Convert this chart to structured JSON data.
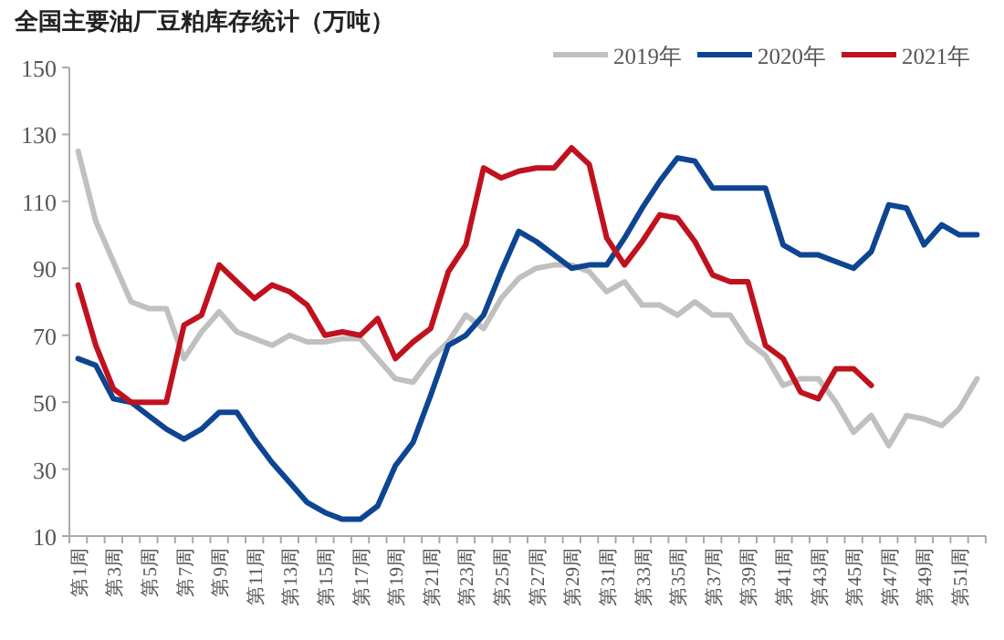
{
  "chart_data": {
    "type": "line",
    "title": "全国主要油厂豆粕库存统计（万吨）",
    "categories": [
      "第1周",
      null,
      "第3周",
      null,
      "第5周",
      null,
      "第7周",
      null,
      "第9周",
      null,
      "第11周",
      null,
      "第13周",
      null,
      "第15周",
      null,
      "第17周",
      null,
      "第19周",
      null,
      "第21周",
      null,
      "第23周",
      null,
      "第25周",
      null,
      "第27周",
      null,
      "第29周",
      null,
      "第31周",
      null,
      "第33周",
      null,
      "第35周",
      null,
      "第37周",
      null,
      "第39周",
      null,
      "第41周",
      null,
      "第43周",
      null,
      "第45周",
      null,
      "第47周",
      null,
      "第49周",
      null,
      "第51周",
      null
    ],
    "series": [
      {
        "name": "2019年",
        "color": "#c0c0c0",
        "values": [
          125,
          104,
          92,
          80,
          78,
          78,
          63,
          71,
          77,
          71,
          69,
          67,
          70,
          68,
          68,
          69,
          69,
          63,
          57,
          56,
          63,
          68,
          76,
          72,
          81,
          87,
          90,
          91,
          91,
          89,
          83,
          86,
          79,
          79,
          76,
          80,
          76,
          76,
          68,
          64,
          55,
          57,
          57,
          50,
          41,
          46,
          37,
          46,
          45,
          43,
          48,
          57
        ]
      },
      {
        "name": "2020年",
        "color": "#0e4592",
        "values": [
          63,
          61,
          51,
          50,
          46,
          42,
          39,
          42,
          47,
          47,
          39,
          32,
          26,
          20,
          17,
          15,
          15,
          19,
          31,
          38,
          52,
          67,
          70,
          76,
          89,
          101,
          98,
          94,
          90,
          91,
          91,
          99,
          108,
          116,
          123,
          122,
          114,
          114,
          114,
          114,
          97,
          94,
          94,
          92,
          90,
          95,
          109,
          108,
          97,
          103,
          100,
          100
        ]
      },
      {
        "name": "2021年",
        "color": "#c0121e",
        "values": [
          85,
          67,
          54,
          50,
          50,
          50,
          73,
          76,
          91,
          86,
          81,
          85,
          83,
          79,
          70,
          71,
          70,
          75,
          63,
          68,
          72,
          89,
          97,
          120,
          117,
          119,
          120,
          120,
          126,
          121,
          99,
          91,
          98,
          106,
          105,
          98,
          88,
          86,
          86,
          67,
          63,
          53,
          51,
          60,
          60,
          55,
          null,
          null,
          null,
          null,
          null,
          null
        ]
      }
    ],
    "ylim": [
      10,
      150
    ],
    "yticks": [
      10,
      30,
      50,
      70,
      90,
      110,
      130,
      150
    ],
    "legend": "top right",
    "grid": false
  }
}
